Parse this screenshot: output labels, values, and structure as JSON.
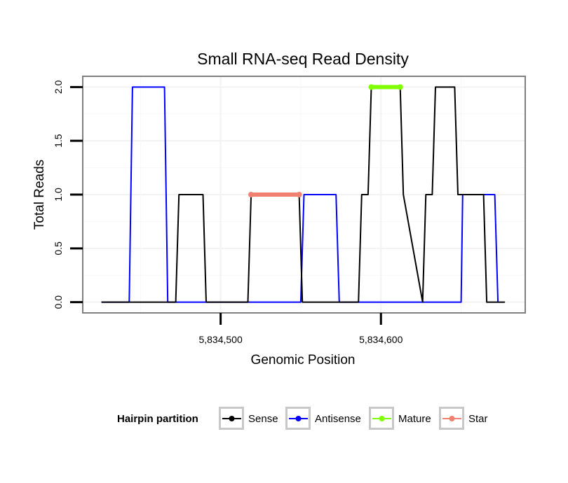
{
  "chart_data": {
    "type": "line",
    "title": "Small RNA-seq Read Density",
    "xlabel": "Genomic Position",
    "ylabel": "Total Reads",
    "xlim": [
      5834414,
      5834690
    ],
    "ylim": [
      -0.1,
      2.1
    ],
    "x_ticks": [
      5834500,
      5834600
    ],
    "x_tick_labels": [
      "5,834,500",
      "5,834,600"
    ],
    "y_ticks": [
      0.0,
      0.5,
      1.0,
      1.5,
      2.0
    ],
    "y_tick_labels": [
      "0.0",
      "0.5",
      "1.0",
      "1.5",
      "2.0"
    ],
    "grid": true,
    "legend": {
      "title": "Hairpin partition",
      "position": "bottom",
      "entries": [
        {
          "name": "Sense",
          "color": "#000000"
        },
        {
          "name": "Antisense",
          "color": "#0000ff"
        },
        {
          "name": "Mature",
          "color": "#7fff00"
        },
        {
          "name": "Star",
          "color": "#f08070"
        }
      ]
    },
    "series": [
      {
        "name": "Sense",
        "color": "#000000",
        "x": [
          5834426,
          5834472,
          5834474,
          5834489,
          5834491,
          5834517,
          5834519,
          5834549,
          5834551,
          5834586,
          5834588,
          5834592,
          5834594,
          5834612,
          5834614,
          5834626,
          5834628,
          5834632,
          5834634,
          5834646,
          5834648,
          5834664,
          5834666,
          5834677
        ],
        "values": [
          0,
          0,
          1,
          1,
          0,
          0,
          1,
          1,
          0,
          0,
          1,
          1,
          2,
          2,
          1,
          0,
          1,
          1,
          2,
          2,
          1,
          1,
          0,
          0
        ]
      },
      {
        "name": "Antisense",
        "color": "#0000ff",
        "x": [
          5834426,
          5834443,
          5834445,
          5834465,
          5834467,
          5834550,
          5834552,
          5834572,
          5834574,
          5834650,
          5834651,
          5834671,
          5834673
        ],
        "values": [
          0,
          0,
          2,
          2,
          0,
          0,
          1,
          1,
          0,
          0,
          1,
          1,
          0
        ]
      },
      {
        "name": "Mature",
        "color": "#7fff00",
        "x": [
          5834594,
          5834612
        ],
        "values": [
          2,
          2
        ]
      },
      {
        "name": "Star",
        "color": "#f08070",
        "x": [
          5834519,
          5834549
        ],
        "values": [
          1,
          1
        ]
      }
    ]
  }
}
